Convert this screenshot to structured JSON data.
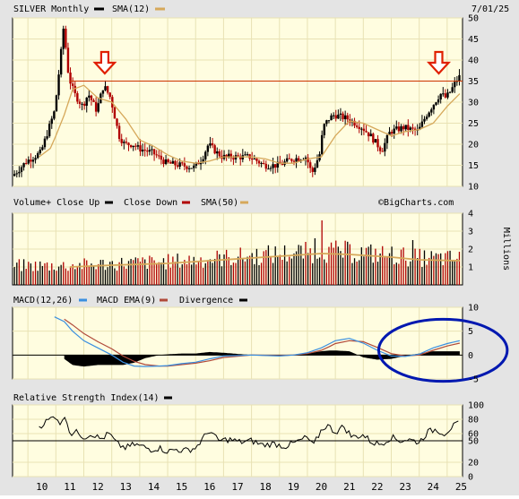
{
  "header": {
    "symbol_label": "SILVER Monthly",
    "sma_label": "SMA(12)",
    "date": "7/01/25"
  },
  "watermark": "©BigCharts.com",
  "colors": {
    "panel_bg": "#fffde0",
    "grid": "#e8e2b4",
    "up": "#000000",
    "down": "#b00000",
    "sma": "#d6a85a",
    "resistance": "#cc3300",
    "arrow": "#e02000",
    "circle": "#0018b0",
    "macd": "#3a8fe0",
    "macd_ema": "#b04a3a",
    "volume_up": "#000000",
    "volume_down": "#b00000"
  },
  "volume_panel": {
    "labels": [
      "Volume+ Close Up",
      "Close Down",
      "SMA(50)"
    ],
    "unit_label": "Millions"
  },
  "macd_panel": {
    "labels": [
      "MACD(12,26)",
      "MACD EMA(9)",
      "Divergence"
    ]
  },
  "rsi_panel": {
    "label": "Relative Strength Index(14)"
  },
  "x_axis": {
    "labels": [
      "10",
      "11",
      "12",
      "13",
      "14",
      "15",
      "16",
      "17",
      "18",
      "19",
      "20",
      "21",
      "22",
      "23",
      "24",
      "25"
    ]
  },
  "annotations": {
    "resistance_level": 35,
    "arrows_at": [
      2012.75,
      2024.7
    ],
    "circle_center": [
      2024.85,
      1
    ],
    "circle_radius": [
      2.3,
      6.5
    ]
  },
  "chart_data": [
    {
      "type": "line",
      "title": "SILVER Monthly",
      "series": [
        {
          "name": "SILVER",
          "x": [
            2009.5,
            2010.0,
            2010.5,
            2010.8,
            2011.0,
            2011.2,
            2011.32,
            2011.5,
            2011.7,
            2012.0,
            2012.2,
            2012.5,
            2012.75,
            2013.0,
            2013.3,
            2013.5,
            2013.8,
            2014.0,
            2014.5,
            2015.0,
            2015.5,
            2016.0,
            2016.3,
            2016.5,
            2016.8,
            2017.0,
            2017.5,
            2018.0,
            2018.5,
            2019.0,
            2019.5,
            2020.0,
            2020.2,
            2020.5,
            2020.6,
            2020.8,
            2021.0,
            2021.5,
            2022.0,
            2022.3,
            2022.7,
            2023.0,
            2023.5,
            2024.0,
            2024.3,
            2024.6,
            2024.8,
            2025.0,
            2025.2,
            2025.45
          ],
          "values": [
            12.5,
            16,
            18,
            24,
            28,
            40,
            48,
            36,
            32,
            29,
            32,
            28,
            34,
            31,
            22,
            20,
            20,
            19,
            18,
            15.5,
            15,
            14.5,
            17,
            20,
            18,
            17,
            17,
            17,
            15,
            15,
            16.5,
            17,
            13,
            18,
            24,
            26,
            27,
            26,
            24,
            22,
            18.5,
            23,
            24,
            23,
            27,
            30,
            32,
            31,
            33,
            36
          ]
        },
        {
          "name": "SMA(12)",
          "x": [
            2010.4,
            2010.8,
            2011.0,
            2011.3,
            2011.6,
            2012.0,
            2012.5,
            2013.0,
            2013.5,
            2014.0,
            2014.5,
            2015.0,
            2015.5,
            2016.0,
            2016.5,
            2017.0,
            2017.5,
            2018.0,
            2018.5,
            2019.0,
            2019.5,
            2020.0,
            2020.5,
            2021.0,
            2021.5,
            2022.0,
            2022.5,
            2023.0,
            2023.5,
            2024.0,
            2024.5,
            2025.0,
            2025.45
          ],
          "values": [
            17,
            19,
            22,
            27,
            33,
            34,
            31,
            30,
            26,
            21,
            19.5,
            17.5,
            16,
            15.5,
            16,
            17,
            17,
            17,
            16.5,
            15.5,
            15.5,
            16.5,
            17,
            22,
            25.5,
            25,
            23.5,
            22,
            23,
            23.5,
            25,
            29,
            32
          ]
        }
      ],
      "ylim": [
        10,
        50
      ],
      "yticks": [
        10,
        15,
        20,
        25,
        30,
        35,
        40,
        45,
        50
      ]
    },
    {
      "type": "bar",
      "title": "Volume",
      "series": [
        {
          "name": "SMA(50)",
          "x": [
            2011.5,
            2013.0,
            2015.0,
            2017.0,
            2019.0,
            2020.5,
            2021.5,
            2023.0,
            2024.0,
            2025.45
          ],
          "values": [
            1.0,
            1.1,
            1.2,
            1.4,
            1.6,
            1.75,
            1.7,
            1.55,
            1.4,
            1.35
          ]
        }
      ],
      "spikes": {
        "x": [
          2020.5,
          2020.3,
          2019.9,
          2023.75
        ],
        "values": [
          3.6,
          2.6,
          2.4,
          2.5
        ]
      },
      "ylim": [
        0,
        4
      ],
      "yticks": [
        1,
        2,
        3,
        4
      ]
    },
    {
      "type": "line",
      "title": "MACD(12,26)",
      "series": [
        {
          "name": "MACD(12,26)",
          "x": [
            2010.95,
            2011.3,
            2011.6,
            2012.0,
            2012.5,
            2013.0,
            2013.4,
            2013.8,
            2014.2,
            2014.7,
            2015.0,
            2015.5,
            2016.0,
            2016.5,
            2017.0,
            2018.0,
            2019.0,
            2019.5,
            2020.0,
            2020.5,
            2020.8,
            2021.0,
            2021.5,
            2022.0,
            2022.5,
            2023.0,
            2023.5,
            2024.0,
            2024.5,
            2025.0,
            2025.45
          ],
          "values": [
            8,
            7,
            5,
            3,
            1.5,
            0,
            -1.5,
            -2.3,
            -2.4,
            -2.3,
            -2.2,
            -1.8,
            -1.5,
            -0.8,
            -0.2,
            0,
            -0.2,
            0,
            0.5,
            1.5,
            2.4,
            3,
            3.5,
            2.5,
            1,
            -0.2,
            -0.3,
            0.2,
            1.5,
            2.4,
            3
          ]
        },
        {
          "name": "MACD EMA(9)",
          "x": [
            2011.3,
            2011.6,
            2012.0,
            2012.5,
            2013.0,
            2013.4,
            2013.8,
            2014.2,
            2014.7,
            2015.0,
            2015.5,
            2016.0,
            2016.5,
            2017.0,
            2018.0,
            2019.0,
            2019.5,
            2020.0,
            2020.5,
            2020.8,
            2021.0,
            2021.5,
            2022.0,
            2022.5,
            2023.0,
            2023.5,
            2024.0,
            2024.5,
            2025.0,
            2025.45
          ],
          "values": [
            7.5,
            6.3,
            4.5,
            2.8,
            1.3,
            -0.2,
            -1.3,
            -2,
            -2.3,
            -2.3,
            -2,
            -1.7,
            -1.2,
            -0.5,
            0,
            -0.1,
            0,
            0.3,
            1,
            1.8,
            2.4,
            3,
            2.8,
            1.6,
            0.3,
            -0.2,
            0,
            1,
            1.9,
            2.5
          ]
        }
      ],
      "ylim": [
        -5,
        10
      ],
      "yticks": [
        -5,
        0,
        5,
        10
      ]
    },
    {
      "type": "line",
      "title": "Relative Strength Index(14)",
      "series": [
        {
          "name": "Relative Strength Index(14)",
          "x": [
            2010.4,
            2010.7,
            2011.0,
            2011.2,
            2011.35,
            2011.5,
            2011.8,
            2012.0,
            2012.3,
            2012.6,
            2012.9,
            2013.2,
            2013.5,
            2013.8,
            2014.1,
            2014.4,
            2014.7,
            2015.0,
            2015.3,
            2015.6,
            2016.0,
            2016.3,
            2016.5,
            2016.8,
            2017.2,
            2017.6,
            2018.0,
            2018.4,
            2018.8,
            2019.2,
            2019.6,
            2020.0,
            2020.2,
            2020.5,
            2020.7,
            2021.0,
            2021.3,
            2021.6,
            2022.0,
            2022.3,
            2022.6,
            2023.0,
            2023.3,
            2023.6,
            2024.0,
            2024.3,
            2024.6,
            2024.9,
            2025.2,
            2025.45
          ],
          "values": [
            70,
            78,
            85,
            72,
            88,
            60,
            62,
            55,
            60,
            52,
            60,
            45,
            40,
            45,
            42,
            38,
            40,
            35,
            38,
            36,
            40,
            55,
            65,
            50,
            52,
            48,
            50,
            44,
            46,
            42,
            48,
            55,
            42,
            65,
            72,
            62,
            70,
            55,
            58,
            48,
            45,
            55,
            50,
            52,
            48,
            62,
            66,
            60,
            70,
            74
          ]
        }
      ],
      "ylim": [
        0,
        100
      ],
      "yticks": [
        0,
        20,
        50,
        60,
        80,
        100
      ],
      "reference_line": 50
    }
  ]
}
